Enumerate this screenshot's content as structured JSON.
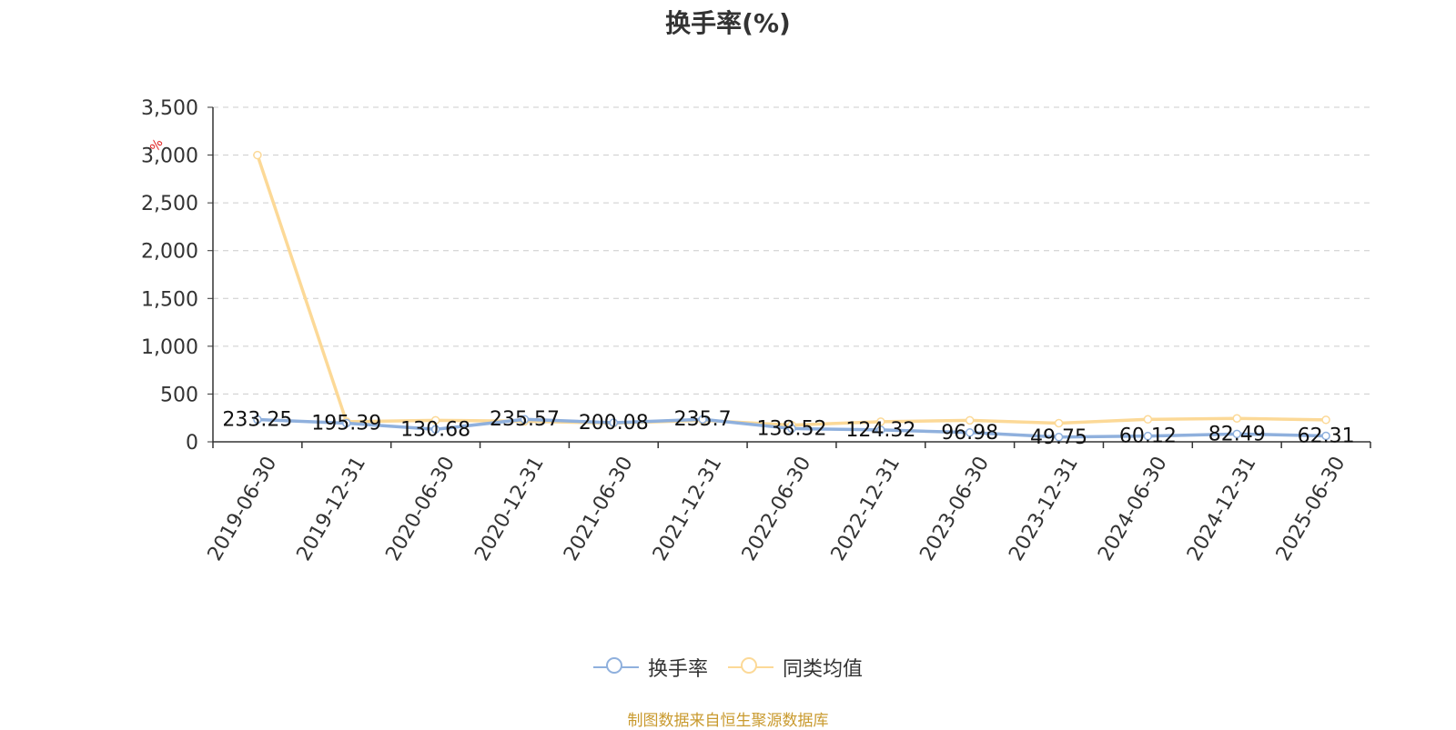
{
  "chart_data": {
    "type": "line",
    "title": "换手率(%)",
    "ylabel": "%",
    "ylim": [
      0,
      3500
    ],
    "yticks": [
      "0",
      "500",
      "1,000",
      "1,500",
      "2,000",
      "2,500",
      "3,000",
      "3,500"
    ],
    "ytick_values": [
      0,
      500,
      1000,
      1500,
      2000,
      2500,
      3000,
      3500
    ],
    "grid": true,
    "legend": "bottom",
    "categories": [
      "2019-06-30",
      "2019-12-31",
      "2020-06-30",
      "2020-12-31",
      "2021-06-30",
      "2021-12-31",
      "2022-06-30",
      "2022-12-31",
      "2023-06-30",
      "2023-12-31",
      "2024-06-30",
      "2024-12-31",
      "2025-06-30"
    ],
    "series": [
      {
        "name": "换手率",
        "color": "#8fb0dd",
        "values": [
          233.25,
          195.39,
          130.68,
          235.57,
          200.08,
          235.7,
          138.52,
          124.32,
          96.98,
          49.75,
          60.12,
          82.49,
          62.31
        ],
        "labels": [
          "233.25",
          "195.39",
          "130.68",
          "235.57",
          "200.08",
          "235.7",
          "138.52",
          "124.32",
          "96.98",
          "49.75",
          "60.12",
          "82.49",
          "62.31"
        ]
      },
      {
        "name": "同类均值",
        "color": "#fcd997",
        "values": [
          3000,
          210,
          225,
          215,
          195,
          225,
          175,
          210,
          225,
          195,
          235,
          245,
          230
        ]
      }
    ]
  },
  "source": "制图数据来自恒生聚源数据库"
}
